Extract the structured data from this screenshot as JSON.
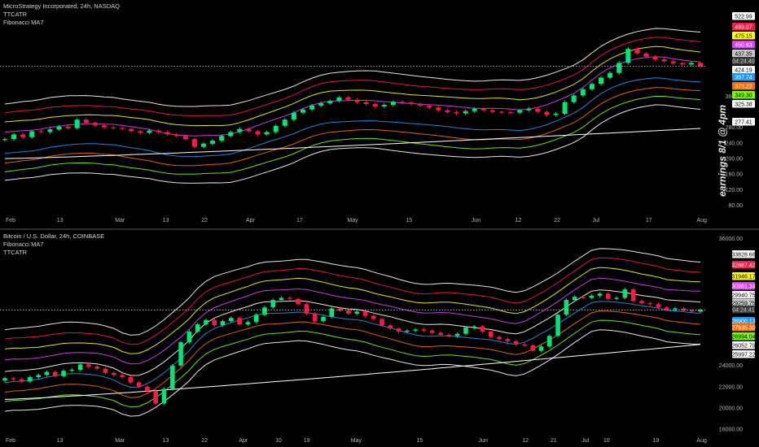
{
  "chart_data": [
    {
      "type": "line",
      "title": "MicroStrategy Incorporated, 24h, NASDAQ",
      "indicators": [
        "TTCATR",
        "Fibonacci MA7"
      ],
      "annotation": "earnings 8/1 @ 4pm",
      "x_ticks": [
        "Feb",
        "13",
        "Mar",
        "13",
        "22",
        "Apr",
        "17",
        "May",
        "15",
        "Jun",
        "12",
        "22",
        "Jul",
        "17",
        "Aug"
      ],
      "y_ticks": [
        "360.00",
        "280.00",
        "240.00",
        "200.00",
        "160.00",
        "120.00",
        "80.00"
      ],
      "ylim": [
        60,
        570
      ],
      "grid": false,
      "price_labels": [
        {
          "value": "522.99",
          "color": "#ffffff",
          "text_color": "#000000"
        },
        {
          "value": "499.07",
          "color": "#ff1744",
          "text_color": "#ffffff"
        },
        {
          "value": "475.15",
          "color": "#ffff00",
          "text_color": "#000000"
        },
        {
          "value": "450.63",
          "color": "#e040fb",
          "text_color": "#ffffff"
        },
        {
          "value": "437.35",
          "color": "#c8c8c8",
          "text_color": "#000000"
        },
        {
          "value": "04:24:40",
          "color": "#3a3a3a",
          "text_color": "#d1d4dc"
        },
        {
          "value": "424.19",
          "color": "#ffffff",
          "text_color": "#000000"
        },
        {
          "value": "397.74",
          "color": "#2196f3",
          "text_color": "#ffffff"
        },
        {
          "value": "373.22",
          "color": "#ff6d00",
          "text_color": "#ffffff"
        },
        {
          "value": "349.30",
          "color": "#76ff03",
          "text_color": "#000000"
        },
        {
          "value": "325.38",
          "color": "#ffffff",
          "text_color": "#000000"
        },
        {
          "value": "277.41",
          "color": "#ffffff",
          "text_color": "#000000"
        }
      ],
      "close": [
        250,
        262,
        255,
        270,
        268,
        275,
        282,
        278,
        300,
        292,
        285,
        280,
        278,
        276,
        270,
        266,
        272,
        268,
        262,
        258,
        250,
        230,
        238,
        246,
        258,
        268,
        276,
        270,
        262,
        268,
        284,
        300,
        318,
        326,
        336,
        342,
        348,
        357,
        351,
        345,
        340,
        334,
        338,
        346,
        344,
        340,
        336,
        331,
        324,
        319,
        316,
        322,
        328,
        324,
        320,
        319,
        318,
        324,
        328,
        320,
        312,
        315,
        345,
        362,
        378,
        392,
        408,
        420,
        446,
        482,
        470,
        462,
        455,
        450,
        445,
        442,
        446,
        437
      ],
      "bands": [
        {
          "name": "outer-upper",
          "color": "#ffffff",
          "last": 522.99
        },
        {
          "name": "fib-1",
          "color": "#ff1744",
          "last": 499.07
        },
        {
          "name": "fib-2",
          "color": "#ffff00",
          "last": 475.15
        },
        {
          "name": "fib-3",
          "color": "#e040fb",
          "last": 450.63
        },
        {
          "name": "fib-4",
          "color": "#2196f3",
          "last": 397.74
        },
        {
          "name": "fib-5",
          "color": "#ff6d00",
          "last": 373.22
        },
        {
          "name": "fib-6",
          "color": "#76ff03",
          "last": 349.3
        },
        {
          "name": "outer-lower",
          "color": "#ffffff",
          "last": 325.38
        }
      ],
      "ma_long": {
        "color": "#ffffff",
        "last": 277.41
      }
    },
    {
      "type": "line",
      "title": "Bitcoin / U.S. Dollar, 24h, COINBASE",
      "indicators": [
        "Fibonacci MA7",
        "TTCATR"
      ],
      "x_ticks": [
        "Feb",
        "13",
        "Mar",
        "13",
        "22",
        "Apr",
        "10",
        "19",
        "May",
        "15",
        "Jun",
        "12",
        "21",
        "Jul",
        "10",
        "19",
        "Aug"
      ],
      "y_ticks": [
        "36000.00",
        "24000.00",
        "22000.00",
        "20000.00",
        "18000.00"
      ],
      "ylim": [
        17600,
        36200
      ],
      "grid": false,
      "price_labels": [
        {
          "value": "33828.68",
          "color": "#ffffff",
          "text_color": "#000000"
        },
        {
          "value": "32887.42",
          "color": "#ff1744",
          "text_color": "#ffffff"
        },
        {
          "value": "31946.17",
          "color": "#ffff00",
          "text_color": "#000000"
        },
        {
          "value": "30981.34",
          "color": "#e040fb",
          "text_color": "#ffffff"
        },
        {
          "value": "29940.75",
          "color": "#ffffff",
          "text_color": "#000000"
        },
        {
          "value": "29259.75",
          "color": "#c8c8c8",
          "text_color": "#000000"
        },
        {
          "value": "04:24:41",
          "color": "#3a3a3a",
          "text_color": "#d1d4dc"
        },
        {
          "value": "28900.13",
          "color": "#2196f3",
          "text_color": "#ffffff"
        },
        {
          "value": "27935.30",
          "color": "#ff6d00",
          "text_color": "#ffffff"
        },
        {
          "value": "26994.04",
          "color": "#76ff03",
          "text_color": "#000000"
        },
        {
          "value": "26052.79",
          "color": "#ffffff",
          "text_color": "#000000"
        },
        {
          "value": "25997.22",
          "color": "#ffffff",
          "text_color": "#000000"
        }
      ],
      "close": [
        22800,
        22700,
        22500,
        22900,
        23100,
        23400,
        23000,
        23500,
        23600,
        24100,
        23900,
        23700,
        23300,
        23100,
        22900,
        22400,
        22000,
        21600,
        20400,
        21800,
        24000,
        26200,
        27200,
        27900,
        28300,
        27800,
        28200,
        28500,
        27900,
        28100,
        28800,
        29500,
        30200,
        30400,
        30300,
        29800,
        28900,
        28200,
        28600,
        29400,
        29200,
        28900,
        29100,
        28700,
        28400,
        27800,
        27500,
        27200,
        27300,
        27400,
        27300,
        27100,
        26900,
        26800,
        27000,
        27600,
        27700,
        27200,
        26700,
        26500,
        26300,
        26000,
        25900,
        25400,
        25800,
        26800,
        28800,
        30200,
        30500,
        30400,
        30600,
        30800,
        30300,
        30400,
        31200,
        30100,
        29900,
        29800,
        29500,
        29300,
        29400,
        29200,
        29100,
        29259
      ],
      "bands": [
        {
          "name": "outer-upper",
          "color": "#ffffff",
          "last": 33828.68
        },
        {
          "name": "fib-1",
          "color": "#ff1744",
          "last": 32887.42
        },
        {
          "name": "fib-2",
          "color": "#ffff00",
          "last": 31946.17
        },
        {
          "name": "fib-3",
          "color": "#e040fb",
          "last": 30981.34
        },
        {
          "name": "mid",
          "color": "#ffffff",
          "last": 29940.75
        },
        {
          "name": "fib-4",
          "color": "#2196f3",
          "last": 28900.13
        },
        {
          "name": "fib-5",
          "color": "#ff6d00",
          "last": 27935.3
        },
        {
          "name": "fib-6",
          "color": "#76ff03",
          "last": 26994.04
        },
        {
          "name": "outer-lower",
          "color": "#ffffff",
          "last": 26052.79
        }
      ],
      "ma_long": {
        "color": "#ffffff",
        "last": 25997.22
      }
    }
  ]
}
